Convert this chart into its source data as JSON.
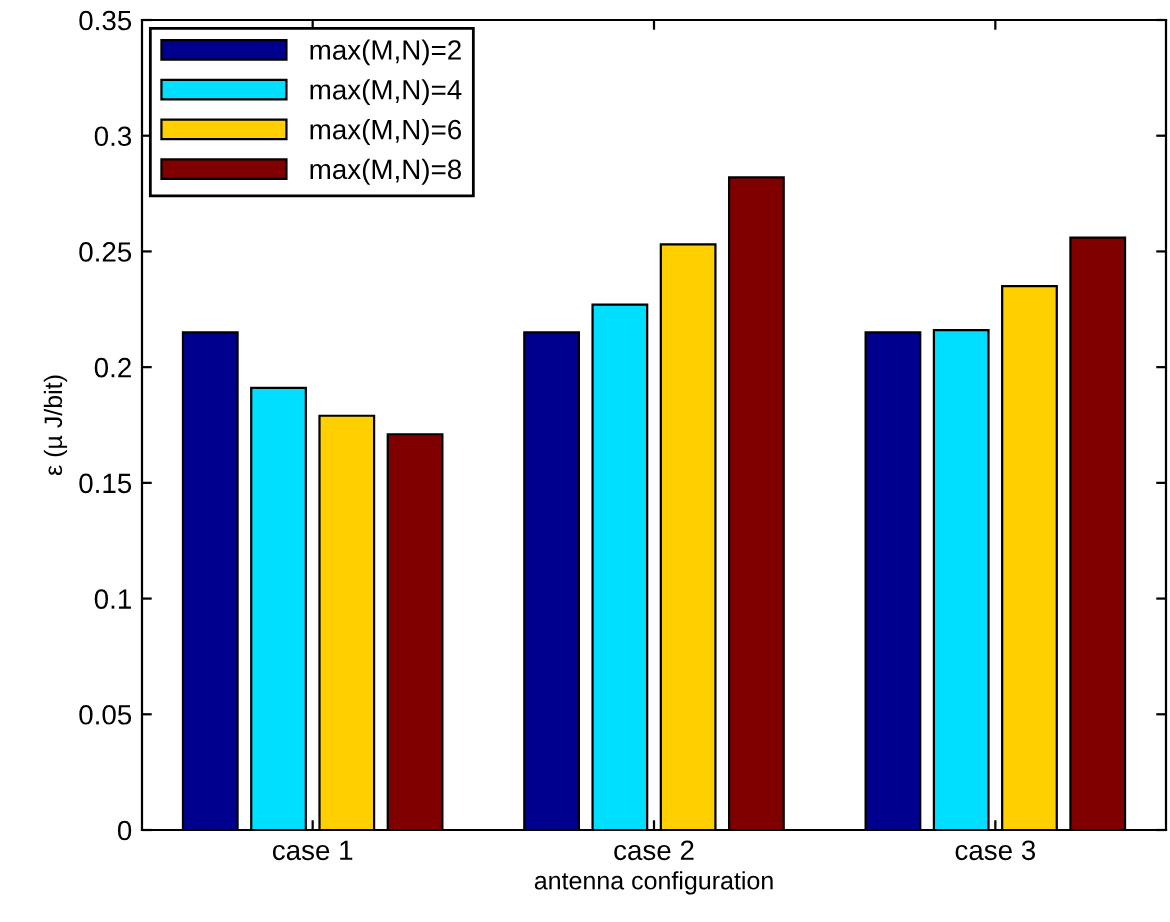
{
  "chart_data": {
    "type": "bar",
    "xlabel": "antenna configuration",
    "ylabel": "ε (µ J/bit)",
    "categories": [
      "case 1",
      "case 2",
      "case 3"
    ],
    "series": [
      {
        "name": "max(M,N)=2",
        "color": "#00008f",
        "values": [
          0.215,
          0.215,
          0.215
        ]
      },
      {
        "name": "max(M,N)=4",
        "color": "#00dfff",
        "values": [
          0.191,
          0.227,
          0.216
        ]
      },
      {
        "name": "max(M,N)=6",
        "color": "#ffcf00",
        "values": [
          0.179,
          0.253,
          0.235
        ]
      },
      {
        "name": "max(M,N)=8",
        "color": "#800000",
        "values": [
          0.171,
          0.282,
          0.256
        ]
      }
    ],
    "ylim": [
      0,
      0.35
    ],
    "yticks": [
      0,
      0.05,
      0.1,
      0.15,
      0.2,
      0.25,
      0.3,
      0.35
    ],
    "grid": false,
    "legend": "top left"
  }
}
